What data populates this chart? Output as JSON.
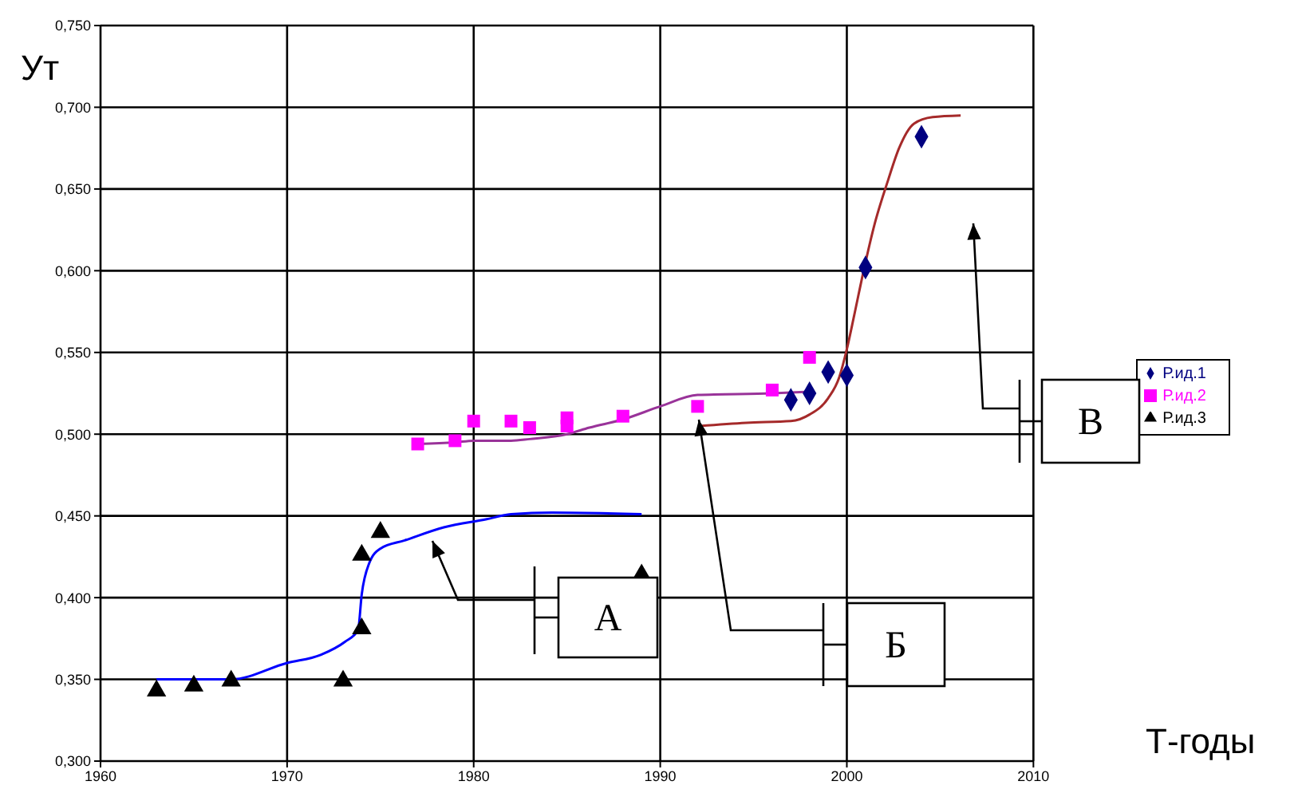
{
  "chart_data": {
    "type": "scatter",
    "ylabel": "Ут",
    "xlabel": "Т-годы",
    "xlim": [
      1960,
      2010
    ],
    "xticks": [
      1960,
      1970,
      1980,
      1990,
      2000,
      2010
    ],
    "ylim": [
      0.3,
      0.75
    ],
    "yticks": [
      {
        "value": 0.3,
        "label": "0,300"
      },
      {
        "value": 0.35,
        "label": "0,350"
      },
      {
        "value": 0.4,
        "label": "0,400"
      },
      {
        "value": 0.45,
        "label": "0,450"
      },
      {
        "value": 0.5,
        "label": "0,500"
      },
      {
        "value": 0.55,
        "label": "0,550"
      },
      {
        "value": 0.6,
        "label": "0,600"
      },
      {
        "value": 0.65,
        "label": "0,650"
      },
      {
        "value": 0.7,
        "label": "0,700"
      },
      {
        "value": 0.75,
        "label": "0,750"
      }
    ],
    "grid": true,
    "legend": "right",
    "series": [
      {
        "name": "Р.ид.1",
        "marker": "diamond",
        "color": "#000080",
        "x": [
          1997,
          1998,
          1999,
          2000,
          2001,
          2004
        ],
        "values": [
          0.521,
          0.525,
          0.538,
          0.536,
          0.602,
          0.682
        ]
      },
      {
        "name": "Р.ид.2",
        "marker": "square",
        "color": "#ff00ff",
        "x": [
          1977,
          1979,
          1980,
          1982,
          1983,
          1985,
          1985,
          1988,
          1992,
          1996,
          1998
        ],
        "values": [
          0.494,
          0.496,
          0.508,
          0.508,
          0.504,
          0.51,
          0.505,
          0.511,
          0.517,
          0.527,
          0.547
        ]
      },
      {
        "name": "Р.ид.3",
        "marker": "triangle",
        "color": "#000000",
        "x": [
          1963,
          1965,
          1967,
          1973,
          1974,
          1974,
          1975,
          1989
        ],
        "values": [
          0.343,
          0.346,
          0.349,
          0.349,
          0.381,
          0.426,
          0.44,
          0.414
        ]
      },
      {
        "type": "line",
        "color": "#a52a2a",
        "x": [
          1992.1,
          1994.6,
          1997,
          1998,
          1999,
          1999.6,
          2000,
          2000.4,
          2000.9,
          2001.5,
          2002.2,
          2002.8,
          2003.6,
          2004.6,
          2006.1
        ],
        "values": [
          0.505,
          0.507,
          0.508,
          0.512,
          0.522,
          0.535,
          0.552,
          0.573,
          0.6,
          0.629,
          0.655,
          0.675,
          0.69,
          0.694,
          0.695
        ]
      },
      {
        "type": "line",
        "color": "#993399",
        "x": [
          1977,
          1979,
          1980,
          1982,
          1983,
          1985,
          1986.2,
          1988,
          1990,
          1992,
          1996,
          1998
        ],
        "values": [
          0.494,
          0.495,
          0.496,
          0.496,
          0.497,
          0.5,
          0.504,
          0.509,
          0.517,
          0.524,
          0.525,
          0.526
        ]
      },
      {
        "type": "line",
        "color": "#0000ff",
        "x": [
          1963,
          1965,
          1967,
          1970,
          1971.8,
          1973.1,
          1973.8,
          1974,
          1974.4,
          1975,
          1976.3,
          1978.4,
          1980.7,
          1982,
          1984.2,
          1989
        ],
        "values": [
          0.35,
          0.35,
          0.35,
          0.36,
          0.365,
          0.373,
          0.38,
          0.402,
          0.421,
          0.43,
          0.435,
          0.443,
          0.448,
          0.451,
          0.452,
          0.451
        ]
      }
    ],
    "annotations": [
      "А",
      "Б",
      "В"
    ]
  }
}
